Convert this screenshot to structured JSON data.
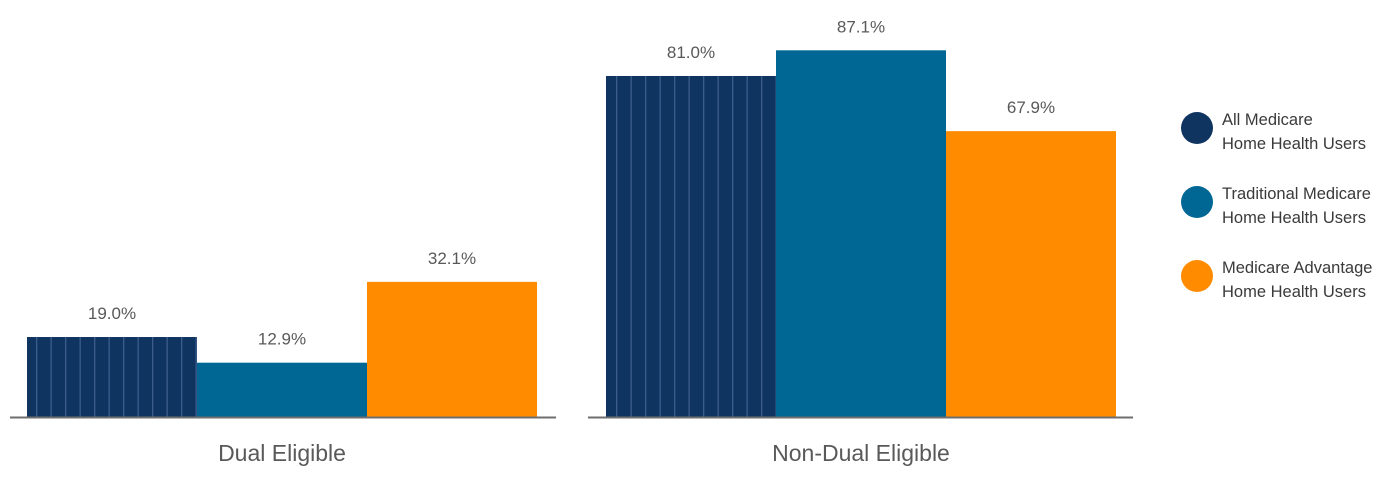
{
  "chart_data": {
    "type": "bar",
    "categories": [
      "Dual Eligible",
      "Non-Dual Eligible"
    ],
    "series": [
      {
        "name": "All Medicare Home Health Users",
        "legend_lines": [
          "All Medicare",
          "Home Health Users"
        ],
        "color": "#0f3460",
        "values": [
          19.0,
          81.0
        ],
        "labels": [
          "19.0%",
          "81.0%"
        ]
      },
      {
        "name": "Traditional Medicare Home Health Users",
        "legend_lines": [
          "Traditional Medicare",
          "Home Health Users"
        ],
        "color": "#006794",
        "values": [
          12.9,
          87.1
        ],
        "labels": [
          "12.9%",
          "87.1%"
        ]
      },
      {
        "name": "Medicare Advantage Home Health Users",
        "legend_lines": [
          "Medicare Advantage",
          "Home Health Users"
        ],
        "color": "#ff8c00",
        "values": [
          32.1,
          67.9
        ],
        "labels": [
          "32.1%",
          "67.9%"
        ]
      }
    ],
    "ylim": [
      0,
      100
    ],
    "grid": false,
    "legend_position": "right",
    "title": "",
    "xlabel": "",
    "ylabel": ""
  }
}
